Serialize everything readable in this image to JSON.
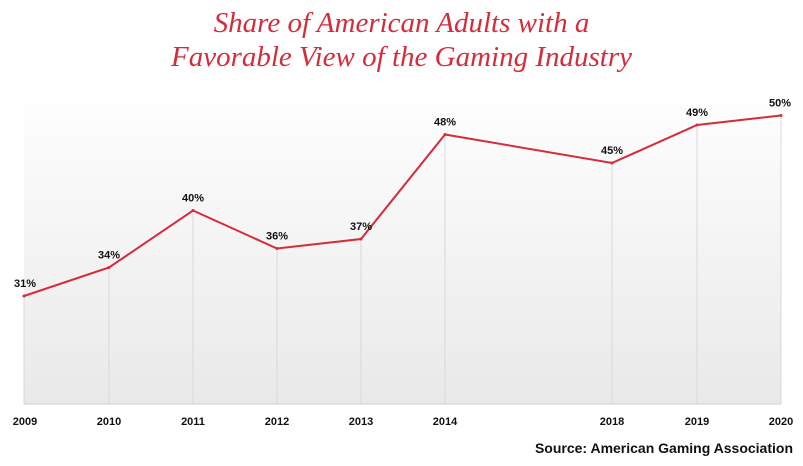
{
  "title_line1": "Share of American Adults with a",
  "title_line2": "Favorable View of the Gaming Industry",
  "source": "Source: American Gaming Association",
  "colors": {
    "line": "#d62b3a",
    "title": "#d62b3a",
    "grid": "#d9d9d9",
    "text": "#111111"
  },
  "chart_data": {
    "type": "line",
    "title": "Share of American Adults with a Favorable View of the Gaming Industry",
    "x": [
      2009,
      2010,
      2011,
      2012,
      2013,
      2014,
      2018,
      2019,
      2020
    ],
    "series": [
      {
        "values": [
          31,
          34,
          40,
          36,
          37,
          48,
          45,
          49,
          50
        ]
      }
    ],
    "data_labels": [
      "31%",
      "34%",
      "40%",
      "36%",
      "37%",
      "48%",
      "45%",
      "49%",
      "50%"
    ],
    "tick_labels": [
      "2009",
      "2010",
      "2011",
      "2012",
      "2013",
      "2014",
      "2018",
      "2019",
      "2020"
    ],
    "xlabel": "",
    "ylabel": "",
    "vertical_grid": true,
    "background": "gradient"
  }
}
